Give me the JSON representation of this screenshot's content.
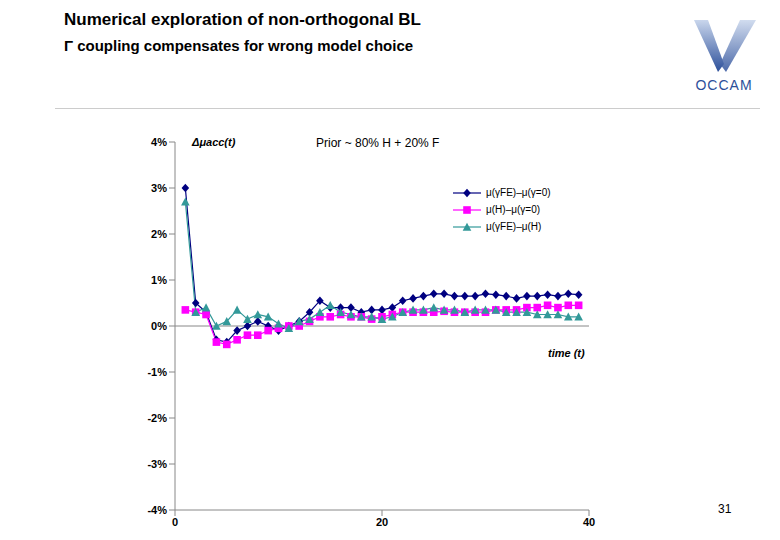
{
  "title": "Numerical exploration of non-orthogonal BL",
  "subtitle": "Γ coupling compensates for wrong model choice",
  "logo_text": "OCCAM",
  "page_number": "31",
  "chart_data": {
    "type": "line",
    "annotation": "Prior ~ 80% H + 20% F",
    "y_label": "Δμacc(t)",
    "x_label": "time (t)",
    "x": [
      1,
      2,
      3,
      4,
      5,
      6,
      7,
      8,
      9,
      10,
      11,
      12,
      13,
      14,
      15,
      16,
      17,
      18,
      19,
      20,
      21,
      22,
      23,
      24,
      25,
      26,
      27,
      28,
      29,
      30,
      31,
      32,
      33,
      34,
      35,
      36,
      37,
      38,
      39
    ],
    "xlim": [
      0,
      40
    ],
    "xticks": [
      0,
      20,
      40
    ],
    "ylim": [
      -4,
      4
    ],
    "yticks": [
      {
        "value": -4,
        "label": "-4%"
      },
      {
        "value": -3,
        "label": "-3%"
      },
      {
        "value": -2,
        "label": "-2%"
      },
      {
        "value": -1,
        "label": "-1%"
      },
      {
        "value": 0,
        "label": "0%"
      },
      {
        "value": 1,
        "label": "1%"
      },
      {
        "value": 2,
        "label": "2%"
      },
      {
        "value": 3,
        "label": "3%"
      },
      {
        "value": 4,
        "label": "4%"
      }
    ],
    "legend": "upper right",
    "series": [
      {
        "name": "μ(γFE)–μ(γ=0)",
        "color": "#000080",
        "marker": "diamond",
        "line_style": "solid",
        "values": [
          3.0,
          0.5,
          0.3,
          -0.3,
          -0.35,
          -0.1,
          0.0,
          0.1,
          0.0,
          -0.1,
          0.0,
          0.1,
          0.3,
          0.55,
          0.4,
          0.4,
          0.4,
          0.3,
          0.35,
          0.35,
          0.4,
          0.55,
          0.6,
          0.65,
          0.7,
          0.7,
          0.65,
          0.65,
          0.65,
          0.7,
          0.68,
          0.65,
          0.6,
          0.65,
          0.65,
          0.68,
          0.65,
          0.7,
          0.68
        ]
      },
      {
        "name": "μ(H)–μ(γ=0)",
        "color": "#ff00ff",
        "marker": "square",
        "line_style": "solid",
        "values": [
          0.35,
          0.3,
          0.25,
          -0.35,
          -0.4,
          -0.3,
          -0.2,
          -0.2,
          -0.1,
          -0.05,
          0.0,
          0.0,
          0.1,
          0.2,
          0.2,
          0.25,
          0.2,
          0.2,
          0.15,
          0.2,
          0.25,
          0.3,
          0.3,
          0.3,
          0.3,
          0.32,
          0.3,
          0.3,
          0.3,
          0.3,
          0.35,
          0.35,
          0.35,
          0.4,
          0.4,
          0.45,
          0.4,
          0.45,
          0.45
        ]
      },
      {
        "name": "μ(γFE)–μ(H)",
        "color": "#339999",
        "marker": "triangle",
        "line_style": "solid",
        "values": [
          2.7,
          0.3,
          0.4,
          0.0,
          0.1,
          0.35,
          0.15,
          0.25,
          0.2,
          0.05,
          -0.05,
          0.1,
          0.15,
          0.3,
          0.45,
          0.3,
          0.25,
          0.2,
          0.2,
          0.15,
          0.2,
          0.3,
          0.35,
          0.35,
          0.4,
          0.35,
          0.35,
          0.3,
          0.35,
          0.35,
          0.35,
          0.3,
          0.3,
          0.3,
          0.25,
          0.25,
          0.25,
          0.2,
          0.2
        ]
      }
    ]
  }
}
